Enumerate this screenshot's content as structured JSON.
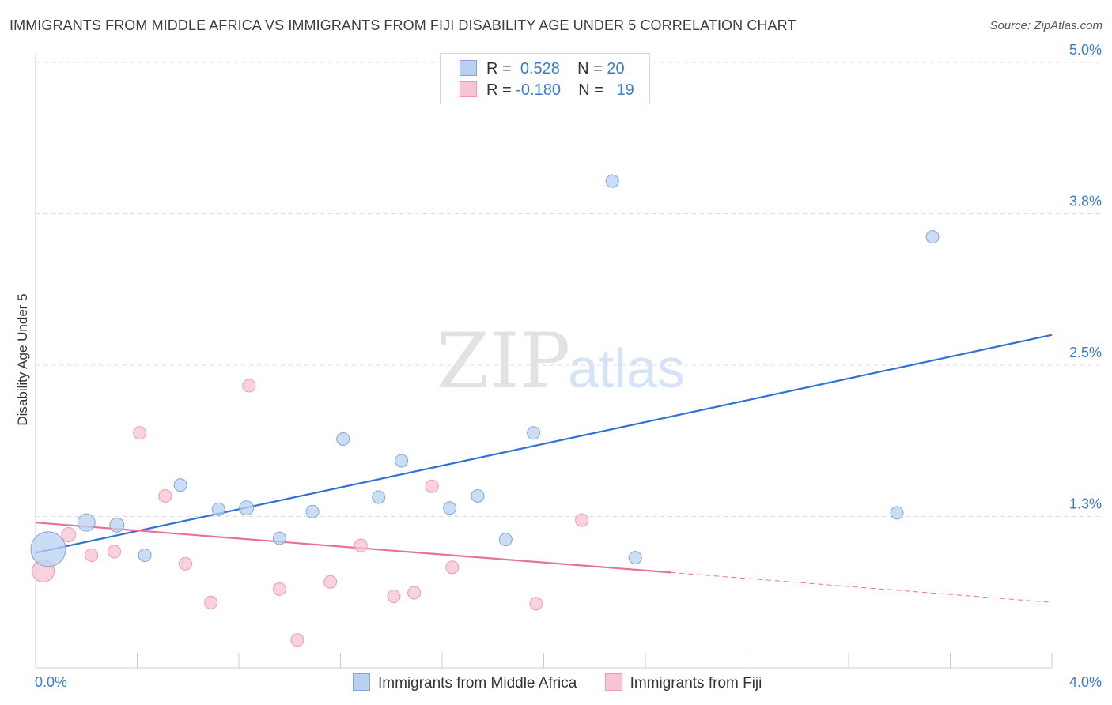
{
  "header": {
    "title": "IMMIGRANTS FROM MIDDLE AFRICA VS IMMIGRANTS FROM FIJI DISABILITY AGE UNDER 5 CORRELATION CHART",
    "source": "Source: ZipAtlas.com"
  },
  "legend": {
    "rows": [
      {
        "r_label": "R =",
        "r_value": "0.528",
        "n_label": "N =",
        "n_value": "20"
      },
      {
        "r_label": "R =",
        "r_value": "-0.180",
        "n_label": "N =",
        "n_value": "19"
      }
    ]
  },
  "bottom_legend": {
    "series_a": "Immigrants from Middle Africa",
    "series_b": "Immigrants from Fiji"
  },
  "watermark": {
    "zip": "ZIP",
    "atlas": "atlas"
  },
  "colors": {
    "blue_fill": "#b8d1f2",
    "blue_stroke": "#7ea6dd",
    "blue_line": "#2f72d6",
    "pink_fill": "#f8c3d2",
    "pink_stroke": "#eb9ab2",
    "pink_line": "#e8709a",
    "grid": "#dddddd",
    "label": "#3a7bd5"
  },
  "chart_data": {
    "type": "scatter",
    "xlabel": "",
    "ylabel": "Disability Age Under 5",
    "xlim": [
      0.0,
      4.0
    ],
    "ylim": [
      0.0,
      5.0
    ],
    "x_tick_labels": [
      "0.0%",
      "4.0%"
    ],
    "y_ticks": [
      1.25,
      2.5,
      3.75,
      5.0
    ],
    "y_tick_labels": [
      "1.3%",
      "2.5%",
      "3.8%",
      "5.0%"
    ],
    "grid": true,
    "series": [
      {
        "name": "Immigrants from Middle Africa",
        "color": "#b8d1f2",
        "points": [
          [
            0.05,
            0.98,
            22
          ],
          [
            0.2,
            1.2,
            11
          ],
          [
            0.32,
            1.18,
            9
          ],
          [
            0.43,
            0.93,
            8
          ],
          [
            0.57,
            1.51,
            8
          ],
          [
            0.72,
            1.31,
            8
          ],
          [
            0.83,
            1.32,
            9
          ],
          [
            0.96,
            1.07,
            8
          ],
          [
            1.09,
            1.29,
            8
          ],
          [
            1.21,
            1.89,
            8
          ],
          [
            1.35,
            1.41,
            8
          ],
          [
            1.44,
            1.71,
            8
          ],
          [
            1.63,
            1.32,
            8
          ],
          [
            1.74,
            1.42,
            8
          ],
          [
            1.85,
            1.06,
            8
          ],
          [
            1.96,
            1.94,
            8
          ],
          [
            2.27,
            4.02,
            8
          ],
          [
            2.36,
            0.91,
            8
          ],
          [
            3.39,
            1.28,
            8
          ],
          [
            3.53,
            3.56,
            8
          ]
        ],
        "trend": {
          "x": [
            0.0,
            4.0
          ],
          "y": [
            0.95,
            2.75
          ]
        }
      },
      {
        "name": "Immigrants from Fiji",
        "color": "#f8c3d2",
        "points": [
          [
            0.03,
            0.8,
            14
          ],
          [
            0.13,
            1.1,
            9
          ],
          [
            0.22,
            0.93,
            8
          ],
          [
            0.31,
            0.96,
            8
          ],
          [
            0.41,
            1.94,
            8
          ],
          [
            0.51,
            1.42,
            8
          ],
          [
            0.59,
            0.86,
            8
          ],
          [
            0.69,
            0.54,
            8
          ],
          [
            0.84,
            2.33,
            8
          ],
          [
            0.96,
            0.65,
            8
          ],
          [
            1.03,
            0.23,
            8
          ],
          [
            1.16,
            0.71,
            8
          ],
          [
            1.28,
            1.01,
            8
          ],
          [
            1.41,
            0.59,
            8
          ],
          [
            1.49,
            0.62,
            8
          ],
          [
            1.56,
            1.5,
            8
          ],
          [
            1.64,
            0.83,
            8
          ],
          [
            1.97,
            0.53,
            8
          ],
          [
            2.15,
            1.22,
            8
          ]
        ],
        "trend": {
          "x": [
            0.0,
            4.0
          ],
          "y": [
            1.2,
            0.54
          ],
          "solid_until": 2.5
        }
      }
    ]
  }
}
